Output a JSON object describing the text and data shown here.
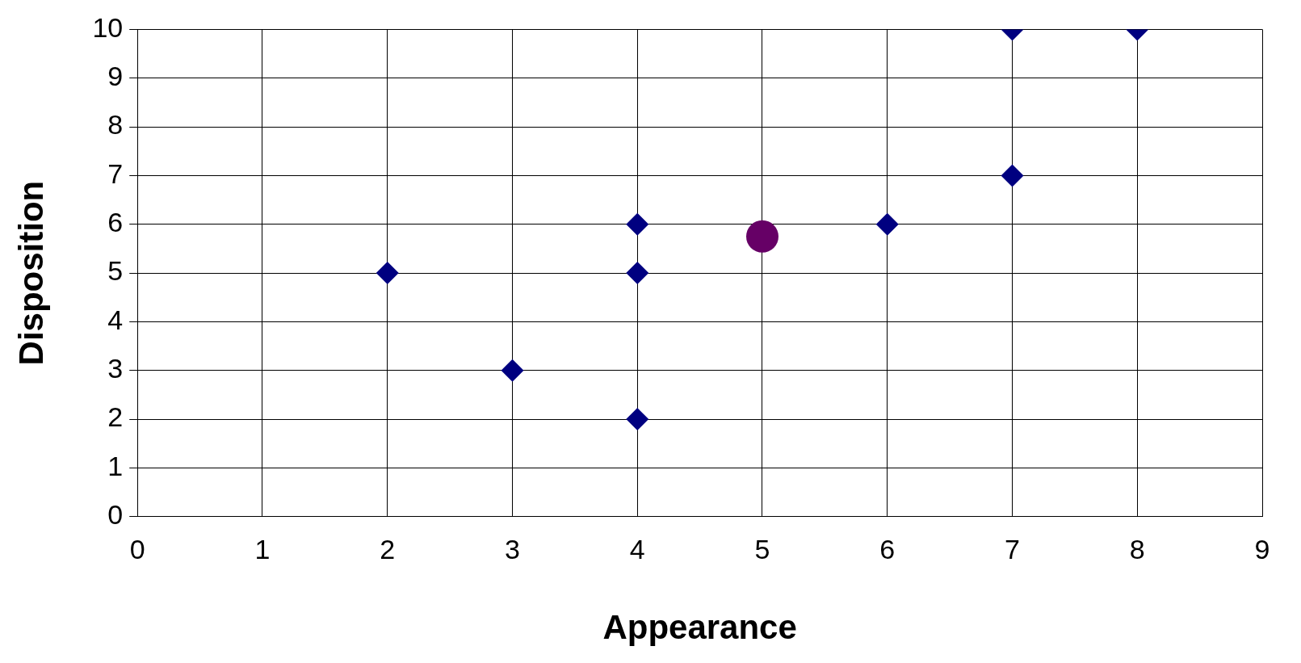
{
  "chart_data": {
    "type": "scatter",
    "xlabel": "Appearance",
    "ylabel": "Disposition",
    "xlim": [
      0,
      9
    ],
    "xticks": [
      0,
      1,
      2,
      3,
      4,
      5,
      6,
      7,
      8,
      9
    ],
    "ylim": [
      0,
      10
    ],
    "yticks": [
      0,
      1,
      2,
      3,
      4,
      5,
      6,
      7,
      8,
      9,
      10
    ],
    "grid": true,
    "legend": false,
    "series": [
      {
        "color": "#000080",
        "marker": "diamond",
        "x": [
          2,
          3,
          4,
          4,
          4,
          6,
          7,
          7,
          8
        ],
        "values": [
          5,
          3,
          2,
          5,
          6,
          6,
          7,
          10,
          10
        ]
      },
      {
        "color": "#660066",
        "marker": "circle",
        "x": [
          5
        ],
        "values": [
          5.75
        ]
      }
    ]
  }
}
